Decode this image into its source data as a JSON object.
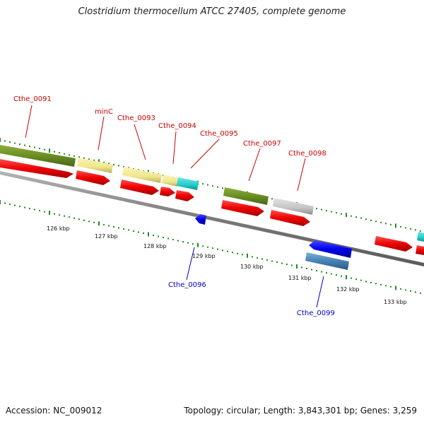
{
  "title": "Clostridium thermocellum ATCC 27405, complete genome",
  "footer": {
    "accession": "Accession: NC_009012",
    "summary": "Topology: circular; Length: 3,843,301 bp; Genes: 3,259"
  },
  "tick_labels": [
    "126 kbp",
    "127 kbp",
    "128 kbp",
    "129 kbp",
    "130 kbp",
    "131 kbp",
    "132 kbp",
    "133 kbp"
  ],
  "gene_labels": {
    "forward": [
      "Cthe_0091",
      "minC",
      "Cthe_0093",
      "Cthe_0094",
      "Cthe_0095",
      "Cthe_0097",
      "Cthe_0098"
    ],
    "reverse": [
      "Cthe_0096",
      "Cthe_0099"
    ]
  },
  "colors": {
    "cds": "#ee0000",
    "reverse_cds": "#0000ee",
    "olive": "#6b8e23",
    "pale_yellow": "#f0e68c",
    "cyan": "#22cccc",
    "gray": "#bbbbbb",
    "steel_blue": "#4682b4",
    "backbone": "#888888",
    "tick_green": "#228b22"
  }
}
